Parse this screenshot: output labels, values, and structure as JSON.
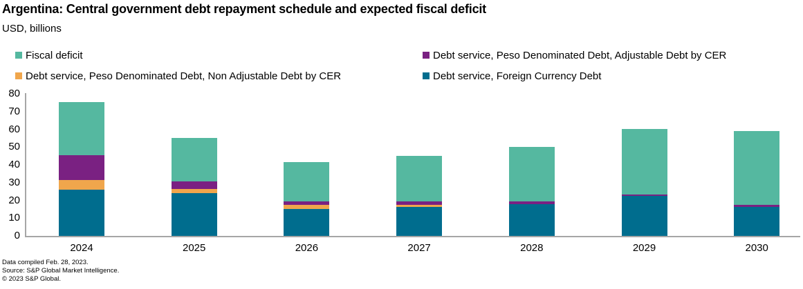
{
  "header": {
    "title": "Argentina: Central government debt repayment schedule and expected fiscal deficit",
    "subtitle": "USD, billions"
  },
  "legend": {
    "items": [
      {
        "label": "Fiscal deficit",
        "color": "#55b8a0"
      },
      {
        "label": "Debt service, Peso Denominated Debt, Adjustable Debt by CER",
        "color": "#7a2182"
      },
      {
        "label": "Debt service, Peso Denominated Debt, Non Adjustable Debt by CER",
        "color": "#f0a64c"
      },
      {
        "label": "Debt service,  Foreign Currency Debt",
        "color": "#006d8e"
      }
    ]
  },
  "chart_data": {
    "type": "bar",
    "stacked": true,
    "title": "Argentina: Central government debt repayment schedule and expected fiscal deficit",
    "units": "USD, billions",
    "categories": [
      "2024",
      "2025",
      "2026",
      "2027",
      "2028",
      "2029",
      "2030"
    ],
    "series": [
      {
        "name": "Debt service,  Foreign Currency Debt",
        "color": "#006d8e",
        "values": [
          26,
          24,
          15,
          16.5,
          18,
          22.5,
          16.5
        ]
      },
      {
        "name": "Debt service, Peso Denominated Debt, Non Adjustable Debt by CER",
        "color": "#f0a64c",
        "values": [
          5.5,
          2.5,
          2.5,
          1,
          0,
          0,
          0
        ]
      },
      {
        "name": "Debt service, Peso Denominated Debt, Adjustable Debt by CER",
        "color": "#7a2182",
        "values": [
          14,
          4,
          2,
          2,
          1.5,
          0.7,
          1
        ]
      },
      {
        "name": "Fiscal deficit",
        "color": "#55b8a0",
        "values": [
          30,
          24.5,
          22,
          25.5,
          30.5,
          37,
          41.5
        ]
      }
    ],
    "totals": [
      75.5,
      55,
      41.5,
      45,
      50,
      60.2,
      59
    ],
    "ylim": [
      0,
      80
    ],
    "yticks": [
      0,
      10,
      20,
      30,
      40,
      50,
      60,
      70,
      80
    ],
    "grid": false,
    "legend_position": "top",
    "axis_color": "#a6a6a6"
  },
  "footer": {
    "line1": "Data compiled Feb. 28, 2023.",
    "line2": "Source: S&P Global Market Intelligence.",
    "line3": "© 2023 S&P Global."
  }
}
